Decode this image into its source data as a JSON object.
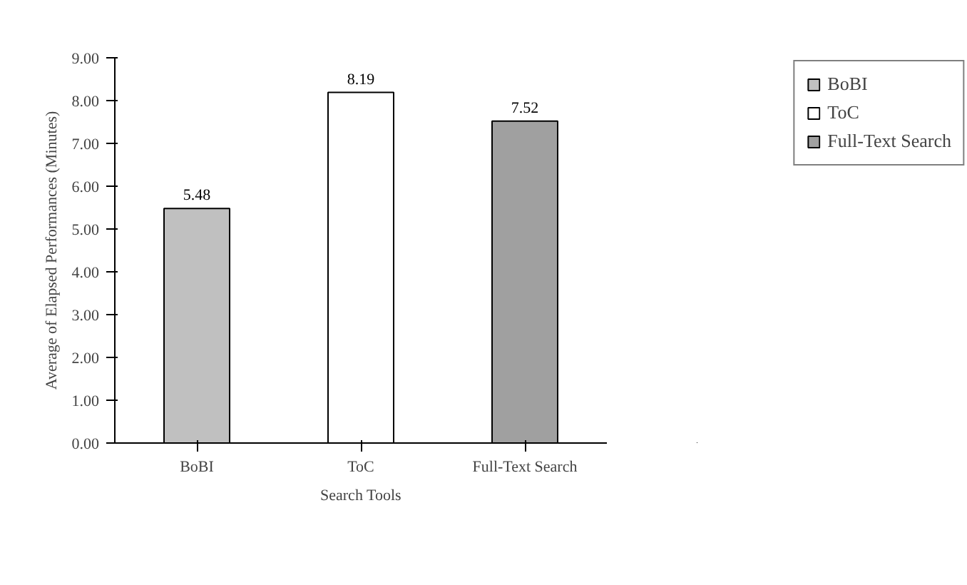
{
  "chart_data": {
    "type": "bar",
    "categories": [
      "BoBI",
      "ToC",
      "Full-Text Search"
    ],
    "series": [
      {
        "name": "BoBI",
        "color": "#c0c0c0",
        "values": [
          5.48,
          null,
          null
        ]
      },
      {
        "name": "ToC",
        "color": "#ffffff",
        "values": [
          null,
          8.19,
          null
        ]
      },
      {
        "name": "Full-Text Search",
        "color": "#a0a0a0",
        "values": [
          null,
          null,
          7.52
        ]
      }
    ],
    "xlabel": "Search Tools",
    "ylabel": "Average of Elapsed Performances (Minutes)",
    "ylim": [
      0,
      9
    ],
    "yticks": [
      {
        "value": 0,
        "label": "0.00"
      },
      {
        "value": 1,
        "label": "1.00"
      },
      {
        "value": 2,
        "label": "2.00"
      },
      {
        "value": 3,
        "label": "3.00"
      },
      {
        "value": 4,
        "label": "4.00"
      },
      {
        "value": 5,
        "label": "5.00"
      },
      {
        "value": 6,
        "label": "6.00"
      },
      {
        "value": 7,
        "label": "7.00"
      },
      {
        "value": 8,
        "label": "8.00"
      },
      {
        "value": 9,
        "label": "9.00"
      }
    ],
    "data_labels": true,
    "legend": "top right",
    "grid": false
  }
}
